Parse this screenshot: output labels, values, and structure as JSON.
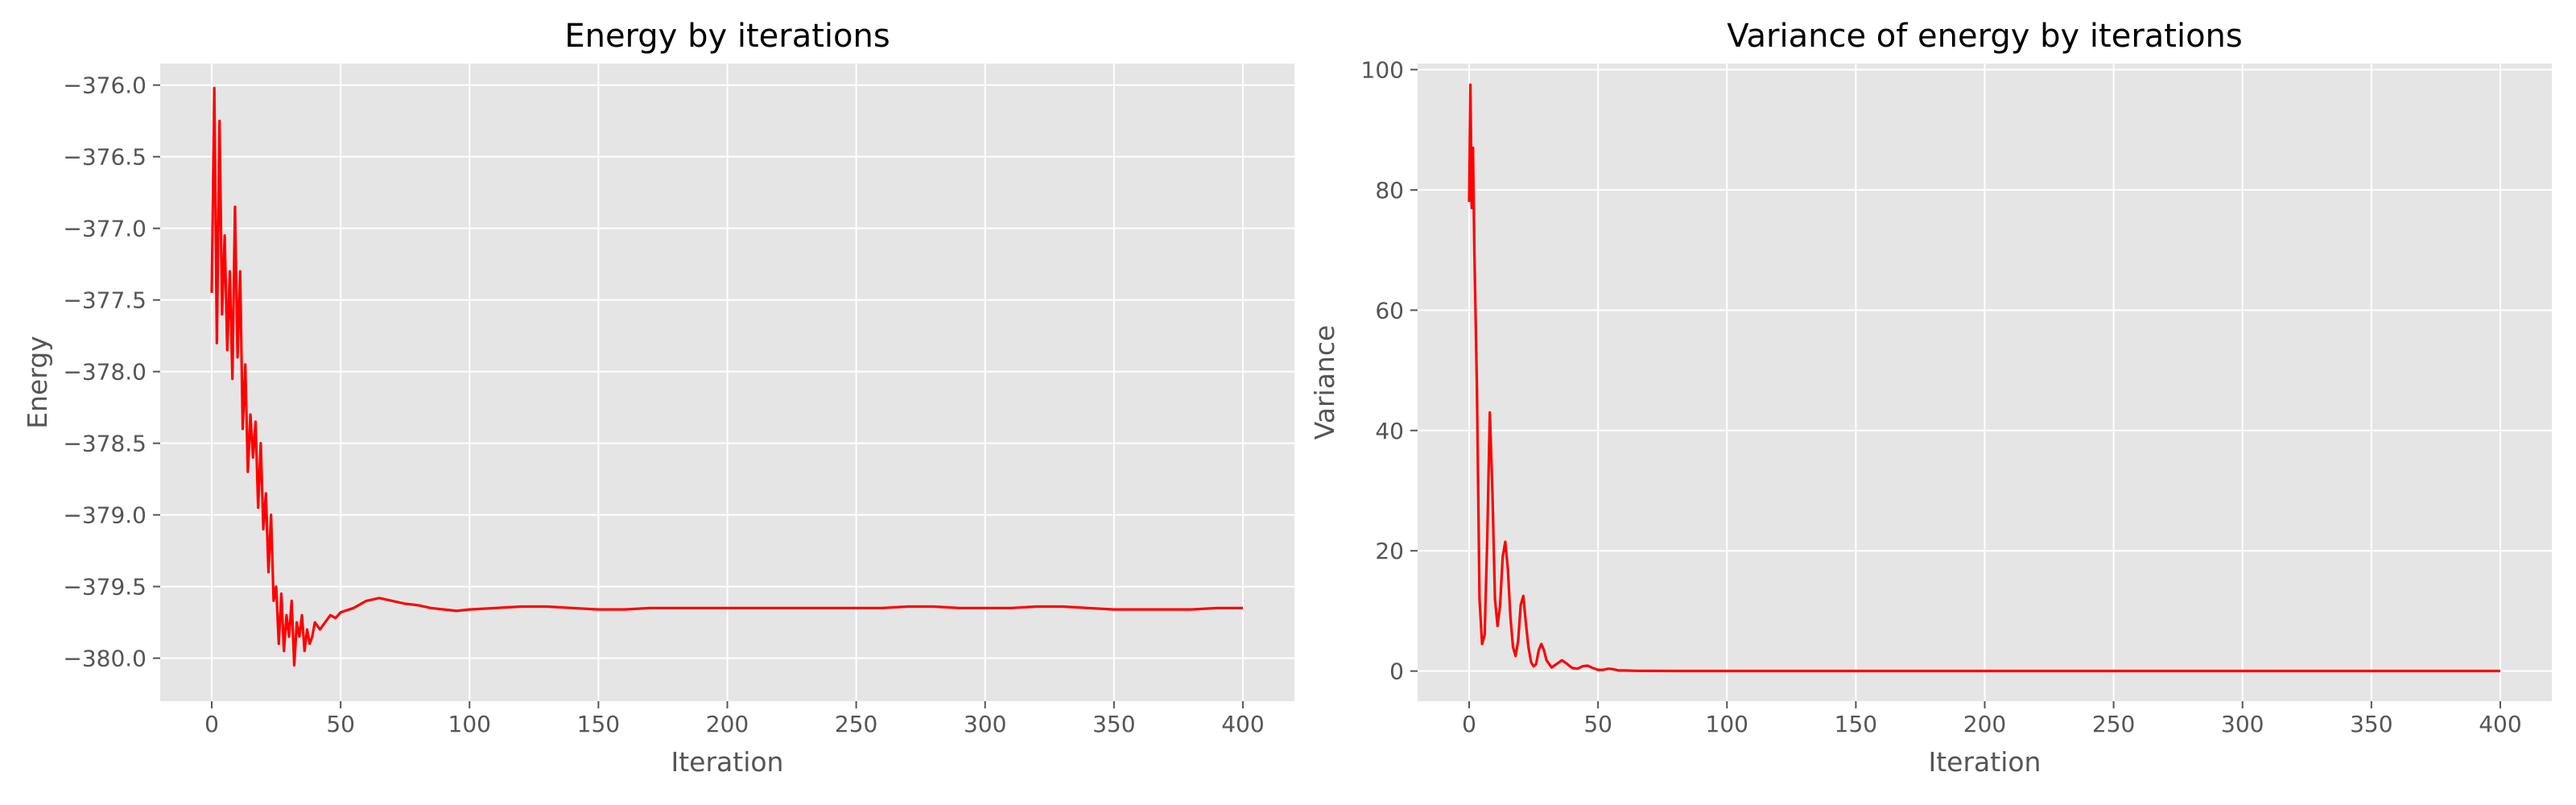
{
  "chart_data": [
    {
      "type": "line",
      "title": "Energy by iterations",
      "xlabel": "Iteration",
      "ylabel": "Energy",
      "xlim": [
        -20,
        420
      ],
      "ylim": [
        -380.3,
        -375.85
      ],
      "xticks": [
        0,
        50,
        100,
        150,
        200,
        250,
        300,
        350,
        400
      ],
      "yticks": [
        -380.0,
        -379.5,
        -379.0,
        -378.5,
        -378.0,
        -377.5,
        -377.0,
        -376.5,
        -376.0
      ],
      "ytick_labels": [
        "−380.0",
        "−379.5",
        "−379.0",
        "−378.5",
        "−378.0",
        "−377.5",
        "−377.0",
        "−376.5",
        "−376.0"
      ],
      "grid": true,
      "color": "#ff0000",
      "series": [
        {
          "x": [
            0,
            1,
            2,
            3,
            4,
            5,
            6,
            7,
            8,
            9,
            10,
            11,
            12,
            13,
            14,
            15,
            16,
            17,
            18,
            19,
            20,
            21,
            22,
            23,
            24,
            25,
            26,
            27,
            28,
            29,
            30,
            31,
            32,
            33,
            34,
            35,
            36,
            37,
            38,
            39,
            40,
            42,
            44,
            46,
            48,
            50,
            55,
            60,
            65,
            70,
            75,
            80,
            85,
            90,
            95,
            100,
            110,
            120,
            130,
            140,
            150,
            160,
            170,
            180,
            190,
            200,
            210,
            220,
            230,
            240,
            250,
            260,
            270,
            280,
            290,
            300,
            310,
            320,
            330,
            340,
            350,
            360,
            370,
            380,
            390,
            400
          ],
          "y": [
            -377.45,
            -376.02,
            -377.8,
            -376.25,
            -377.6,
            -377.05,
            -377.85,
            -377.3,
            -378.05,
            -376.85,
            -377.9,
            -377.3,
            -378.4,
            -377.95,
            -378.7,
            -378.3,
            -378.6,
            -378.35,
            -378.95,
            -378.5,
            -379.1,
            -378.85,
            -379.4,
            -379.0,
            -379.6,
            -379.5,
            -379.9,
            -379.55,
            -379.95,
            -379.7,
            -379.85,
            -379.6,
            -380.05,
            -379.75,
            -379.85,
            -379.7,
            -379.95,
            -379.8,
            -379.9,
            -379.85,
            -379.75,
            -379.8,
            -379.75,
            -379.7,
            -379.72,
            -379.68,
            -379.65,
            -379.6,
            -379.58,
            -379.6,
            -379.62,
            -379.63,
            -379.65,
            -379.66,
            -379.67,
            -379.66,
            -379.65,
            -379.64,
            -379.64,
            -379.65,
            -379.66,
            -379.66,
            -379.65,
            -379.65,
            -379.65,
            -379.65,
            -379.65,
            -379.65,
            -379.65,
            -379.65,
            -379.65,
            -379.65,
            -379.64,
            -379.64,
            -379.65,
            -379.65,
            -379.65,
            -379.64,
            -379.64,
            -379.65,
            -379.66,
            -379.66,
            -379.66,
            -379.66,
            -379.65,
            -379.65
          ]
        }
      ]
    },
    {
      "type": "line",
      "title": "Variance of energy by iterations",
      "xlabel": "Iteration",
      "ylabel": "Variance",
      "xlim": [
        -20,
        420
      ],
      "ylim": [
        -5,
        101
      ],
      "xticks": [
        0,
        50,
        100,
        150,
        200,
        250,
        300,
        350,
        400
      ],
      "yticks": [
        0,
        20,
        40,
        60,
        80,
        100
      ],
      "ytick_labels": [
        "0",
        "20",
        "40",
        "60",
        "80",
        "100"
      ],
      "grid": true,
      "color": "#ff0000",
      "series": [
        {
          "x": [
            0,
            0.5,
            1,
            1.5,
            2,
            3,
            4,
            5,
            6,
            7,
            8,
            9,
            10,
            11,
            12,
            13,
            14,
            15,
            16,
            17,
            18,
            19,
            20,
            21,
            22,
            23,
            24,
            25,
            26,
            27,
            28,
            29,
            30,
            32,
            34,
            36,
            38,
            40,
            42,
            44,
            46,
            48,
            50,
            52,
            54,
            56,
            58,
            60,
            65,
            70,
            80,
            90,
            100,
            150,
            200,
            250,
            300,
            350,
            400
          ],
          "y": [
            78,
            97.5,
            77,
            87,
            70,
            47,
            12,
            4.5,
            6,
            22,
            43,
            30,
            12,
            7.5,
            11,
            19,
            21.5,
            17,
            9,
            4,
            2.5,
            5,
            11,
            12.5,
            8,
            4,
            1.5,
            0.8,
            1.2,
            3.5,
            4.5,
            3.5,
            1.8,
            0.6,
            1.2,
            1.8,
            1.2,
            0.5,
            0.4,
            0.8,
            0.9,
            0.5,
            0.2,
            0.2,
            0.4,
            0.3,
            0.1,
            0.1,
            0.05,
            0.03,
            0.02,
            0.02,
            0.02,
            0.02,
            0.02,
            0.02,
            0.02,
            0.02,
            0.02
          ]
        }
      ]
    }
  ]
}
